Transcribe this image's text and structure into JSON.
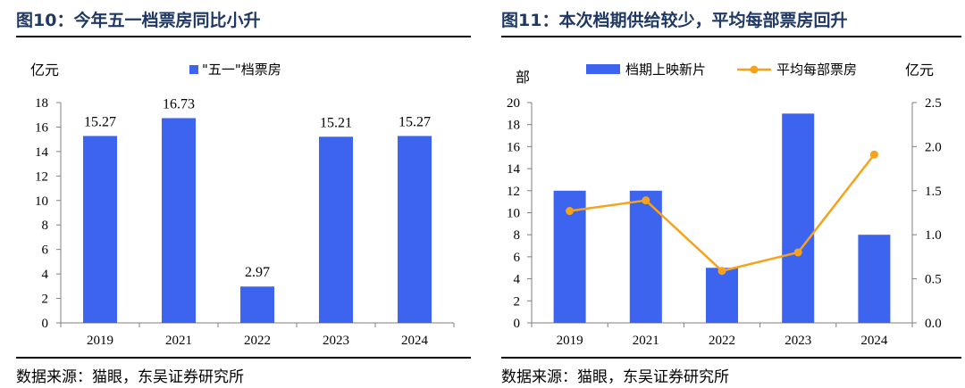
{
  "figures": {
    "left": {
      "title": "图10：今年五一档票房同比小升",
      "source": "数据来源：猫眼，东吴证券研究所"
    },
    "right": {
      "title": "图11：本次档期供给较少，平均每部票房回升",
      "source": "数据来源：猫眼，东吴证券研究所"
    }
  },
  "colors": {
    "bar": "#3c64ef",
    "line": "#f7a21b",
    "axis": "#7f7f7f"
  },
  "chart_data": [
    {
      "type": "bar",
      "categories": [
        "2019",
        "2021",
        "2022",
        "2023",
        "2024"
      ],
      "series": [
        {
          "name": "\"五一\"档票房",
          "values": [
            15.27,
            16.73,
            2.97,
            15.21,
            15.27
          ]
        }
      ],
      "data_labels": [
        "15.27",
        "16.73",
        "2.97",
        "15.21",
        "15.27"
      ],
      "ylabel": "亿元",
      "ylim": [
        0,
        18
      ],
      "yticks": [
        0,
        2,
        4,
        6,
        8,
        10,
        12,
        14,
        16,
        18
      ],
      "legend_position": "top",
      "grid": false
    },
    {
      "type": "bar",
      "categories": [
        "2019",
        "2021",
        "2022",
        "2023",
        "2024"
      ],
      "series": [
        {
          "name": "档期上映新片",
          "kind": "bar",
          "axis": "left",
          "values": [
            12,
            12,
            5,
            19,
            8
          ]
        },
        {
          "name": "平均每部票房",
          "kind": "line",
          "axis": "right",
          "values": [
            1.27,
            1.39,
            0.59,
            0.8,
            1.91
          ]
        }
      ],
      "ylabel": "部",
      "ylabel_right": "亿元",
      "ylim": [
        0,
        20
      ],
      "ylim_right": [
        0,
        2.5
      ],
      "yticks": [
        0,
        2,
        4,
        6,
        8,
        10,
        12,
        14,
        16,
        18,
        20
      ],
      "yticks_right": [
        "0.0",
        "0.5",
        "1.0",
        "1.5",
        "2.0",
        "2.5"
      ],
      "legend_position": "top",
      "grid": false
    }
  ]
}
